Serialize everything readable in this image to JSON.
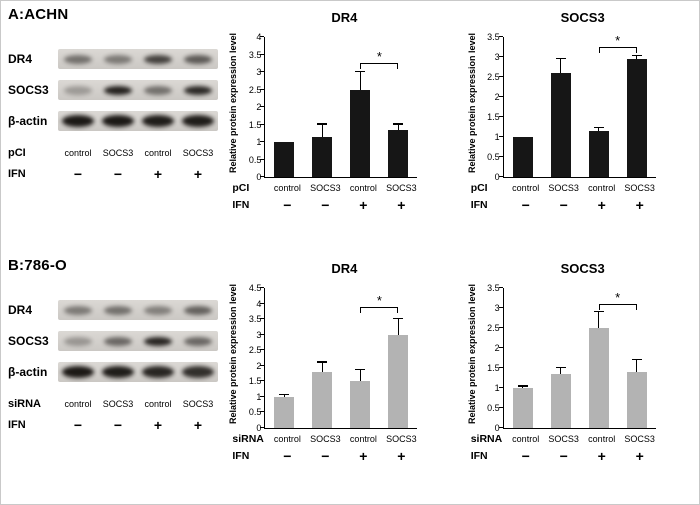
{
  "figure": {
    "panels": [
      {
        "title": "A:ACHN",
        "blots": [
          {
            "label": "DR4",
            "bands": [
              0.5,
              0.45,
              0.75,
              0.62
            ]
          },
          {
            "label": "SOCS3",
            "bands": [
              0.28,
              0.92,
              0.5,
              0.88
            ]
          },
          {
            "label": "β-actin",
            "bands": [
              0.97,
              0.97,
              0.95,
              0.95
            ],
            "band_h": 12,
            "band_w": 32
          }
        ],
        "condition_row_label": "pCI",
        "conditions": [
          "control",
          "SOCS3",
          "control",
          "SOCS3"
        ],
        "ifn_label": "IFN",
        "ifn_values": [
          "−",
          "−",
          "+",
          "+"
        ]
      },
      {
        "title": "B:786-O",
        "blots": [
          {
            "label": "DR4",
            "bands": [
              0.45,
              0.5,
              0.42,
              0.58
            ]
          },
          {
            "label": "SOCS3",
            "bands": [
              0.3,
              0.55,
              0.9,
              0.55
            ]
          },
          {
            "label": "β-actin",
            "bands": [
              0.97,
              0.95,
              0.9,
              0.85
            ],
            "band_h": 12,
            "band_w": 32
          }
        ],
        "condition_row_label": "siRNA",
        "conditions": [
          "control",
          "SOCS3",
          "control",
          "SOCS3"
        ],
        "ifn_label": "IFN",
        "ifn_values": [
          "−",
          "−",
          "+",
          "+"
        ]
      }
    ]
  },
  "chart_data": [
    {
      "type": "bar",
      "panel": "A:ACHN",
      "title": "DR4",
      "ylabel": "Relative protein expression level",
      "ylim": [
        0,
        4
      ],
      "ystep": 0.5,
      "grid": false,
      "legend": "none",
      "bar_color": "#161616",
      "group_label": "pCI",
      "categories": [
        "control",
        "SOCS3",
        "control",
        "SOCS3"
      ],
      "ifn_label": "IFN",
      "ifn": [
        "−",
        "−",
        "+",
        "+"
      ],
      "values": [
        1.0,
        1.15,
        2.5,
        1.35
      ],
      "errors": [
        0,
        0.35,
        0.5,
        0.15
      ],
      "significance": {
        "from": 2,
        "to": 3,
        "label": "*",
        "y": 3.25
      }
    },
    {
      "type": "bar",
      "panel": "A:ACHN",
      "title": "SOCS3",
      "ylabel": "Relative protein expression level",
      "ylim": [
        0,
        3.5
      ],
      "ystep": 0.5,
      "grid": false,
      "legend": "none",
      "bar_color": "#161616",
      "group_label": "pCI",
      "categories": [
        "control",
        "SOCS3",
        "control",
        "SOCS3"
      ],
      "ifn_label": "IFN",
      "ifn": [
        "−",
        "−",
        "+",
        "+"
      ],
      "values": [
        1.0,
        2.6,
        1.15,
        2.95
      ],
      "errors": [
        0,
        0.35,
        0.07,
        0.07
      ],
      "significance": {
        "from": 2,
        "to": 3,
        "label": "*",
        "y": 3.25
      }
    },
    {
      "type": "bar",
      "panel": "B:786-O",
      "title": "DR4",
      "ylabel": "Relative protein expression level",
      "ylim": [
        0,
        4.5
      ],
      "ystep": 0.5,
      "grid": false,
      "legend": "none",
      "bar_color": "#b3b3b3",
      "group_label": "siRNA",
      "categories": [
        "control",
        "SOCS3",
        "control",
        "SOCS3"
      ],
      "ifn_label": "IFN",
      "ifn": [
        "−",
        "−",
        "+",
        "+"
      ],
      "values": [
        1.0,
        1.8,
        1.5,
        3.0
      ],
      "errors": [
        0.05,
        0.3,
        0.35,
        0.5
      ],
      "significance": {
        "from": 2,
        "to": 3,
        "label": "*",
        "y": 3.9
      }
    },
    {
      "type": "bar",
      "panel": "B:786-O",
      "title": "SOCS3",
      "ylabel": "Relative protein expression level",
      "ylim": [
        0,
        3.5
      ],
      "ystep": 0.5,
      "grid": false,
      "legend": "none",
      "bar_color": "#b3b3b3",
      "group_label": "siRNA",
      "categories": [
        "control",
        "SOCS3",
        "control",
        "SOCS3"
      ],
      "ifn_label": "IFN",
      "ifn": [
        "−",
        "−",
        "+",
        "+"
      ],
      "values": [
        1.0,
        1.35,
        2.5,
        1.4
      ],
      "errors": [
        0.03,
        0.15,
        0.4,
        0.3
      ],
      "significance": {
        "from": 2,
        "to": 3,
        "label": "*",
        "y": 3.1
      }
    }
  ]
}
